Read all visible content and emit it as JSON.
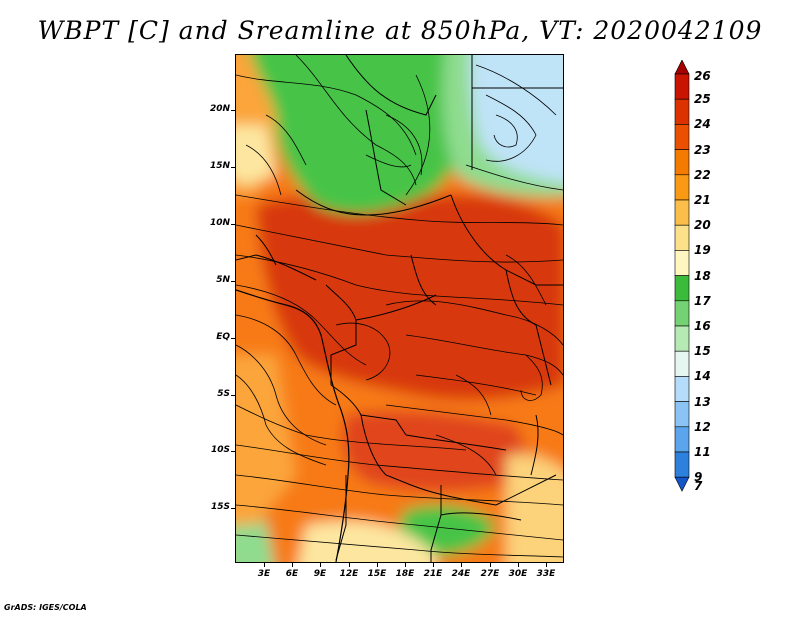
{
  "title": "WBPT [C] and Sreamline at 850hPa, VT: 2020042109",
  "credit": "GrADS: IGES/COLA",
  "lat_labels": [
    "20N",
    "15N",
    "10N",
    "5N",
    "EQ",
    "5S",
    "10S",
    "15S"
  ],
  "lon_labels": [
    "3E",
    "6E",
    "9E",
    "12E",
    "15E",
    "18E",
    "21E",
    "24E",
    "27E",
    "30E",
    "33E"
  ],
  "colorbar": {
    "labels": [
      "26",
      "25",
      "24",
      "23",
      "22",
      "21",
      "20",
      "19",
      "18",
      "17",
      "16",
      "15",
      "14",
      "13",
      "12",
      "11",
      "9",
      "7"
    ],
    "colors": [
      "#a50000",
      "#c81400",
      "#dc3200",
      "#eb5000",
      "#f57a00",
      "#fa9a14",
      "#fcbe4a",
      "#fde08a",
      "#fff7bf",
      "#3cba3c",
      "#74d274",
      "#b5eab5",
      "#e6f7f2",
      "#b5dcfa",
      "#8cc3f5",
      "#5aa5eb",
      "#2d80dc",
      "#1456c8"
    ]
  },
  "map": {
    "fields": {
      "green": "#47c447",
      "light_green": "#8fdc8f",
      "blue": "#bfe3f7",
      "orange_light": "#fba53a",
      "orange": "#f77a18",
      "red_orange": "#e8541a",
      "red": "#d8380e",
      "yellow": "#fde7a0"
    }
  }
}
